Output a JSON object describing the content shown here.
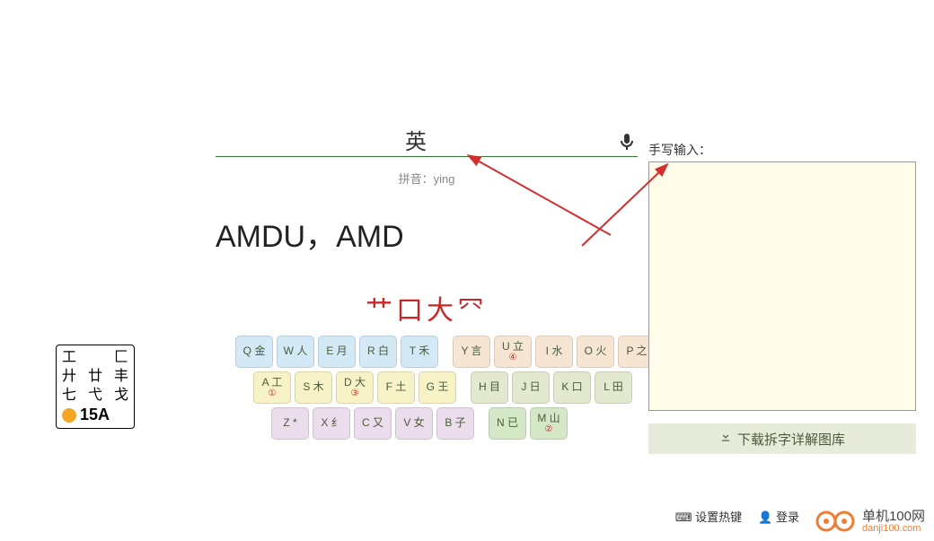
{
  "search": {
    "value": "英",
    "pinyin_label": "拼音：",
    "pinyin": "ying"
  },
  "result_code": "AMDU，AMD",
  "radicals": "艹口大⺳",
  "handwrite": {
    "label": "手写输入：",
    "bg": "#fffdea",
    "border": "#999999"
  },
  "download": {
    "label": "下载拆字详解图库"
  },
  "key_help": {
    "rows": [
      [
        "工",
        "",
        "匚"
      ],
      [
        "廾",
        "廿",
        "丰"
      ],
      [
        "七",
        "弋",
        "戈"
      ]
    ],
    "bottom": "15A"
  },
  "bottom_links": {
    "hotkey": "设置热键",
    "login": "登录"
  },
  "logo": {
    "name": "单机100网",
    "domain": "danji100.com"
  },
  "keyboard": {
    "rows": [
      {
        "offset": 0,
        "keys": [
          {
            "k": "Q",
            "c": "金",
            "bg": "#d3eaf6"
          },
          {
            "k": "W",
            "c": "人",
            "bg": "#d3eaf6"
          },
          {
            "k": "E",
            "c": "月",
            "bg": "#d3eaf6"
          },
          {
            "k": "R",
            "c": "白",
            "bg": "#d3eaf6"
          },
          {
            "k": "T",
            "c": "禾",
            "bg": "#d3eaf6"
          },
          {
            "gap": true
          },
          {
            "k": "Y",
            "c": "言",
            "bg": "#f6e5d3"
          },
          {
            "k": "U",
            "c": "立",
            "bg": "#f6e5d3",
            "badge": "④"
          },
          {
            "k": "I",
            "c": "水",
            "bg": "#f6e5d3"
          },
          {
            "k": "O",
            "c": "火",
            "bg": "#f6e5d3"
          },
          {
            "k": "P",
            "c": "之",
            "bg": "#f6e5d3"
          }
        ]
      },
      {
        "offset": 20,
        "keys": [
          {
            "k": "A",
            "c": "工",
            "bg": "#f8f2c7",
            "badge": "①"
          },
          {
            "k": "S",
            "c": "木",
            "bg": "#f8f2c7"
          },
          {
            "k": "D",
            "c": "大",
            "bg": "#f8f2c7",
            "badge": "③"
          },
          {
            "k": "F",
            "c": "土",
            "bg": "#f8f2c7"
          },
          {
            "k": "G",
            "c": "王",
            "bg": "#f8f2c7"
          },
          {
            "gap": true
          },
          {
            "k": "H",
            "c": "目",
            "bg": "#e2e9ce"
          },
          {
            "k": "J",
            "c": "日",
            "bg": "#e2e9ce"
          },
          {
            "k": "K",
            "c": "口",
            "bg": "#e2e9ce"
          },
          {
            "k": "L",
            "c": "田",
            "bg": "#e2e9ce"
          }
        ]
      },
      {
        "offset": 40,
        "keys": [
          {
            "k": "Z",
            "c": "*",
            "bg": "#ecddec"
          },
          {
            "k": "X",
            "c": "纟",
            "bg": "#ecddec"
          },
          {
            "k": "C",
            "c": "又",
            "bg": "#ecddec"
          },
          {
            "k": "V",
            "c": "女",
            "bg": "#ecddec"
          },
          {
            "k": "B",
            "c": "子",
            "bg": "#ecddec"
          },
          {
            "gap": true
          },
          {
            "k": "N",
            "c": "已",
            "bg": "#d4e8c8"
          },
          {
            "k": "M",
            "c": "山",
            "bg": "#d4e8c8",
            "badge": "②"
          }
        ]
      }
    ]
  },
  "colors": {
    "accent": "#2e7d32",
    "red": "#c62828",
    "download_bg": "#e7ebd9",
    "orange": "#ed7d31"
  }
}
